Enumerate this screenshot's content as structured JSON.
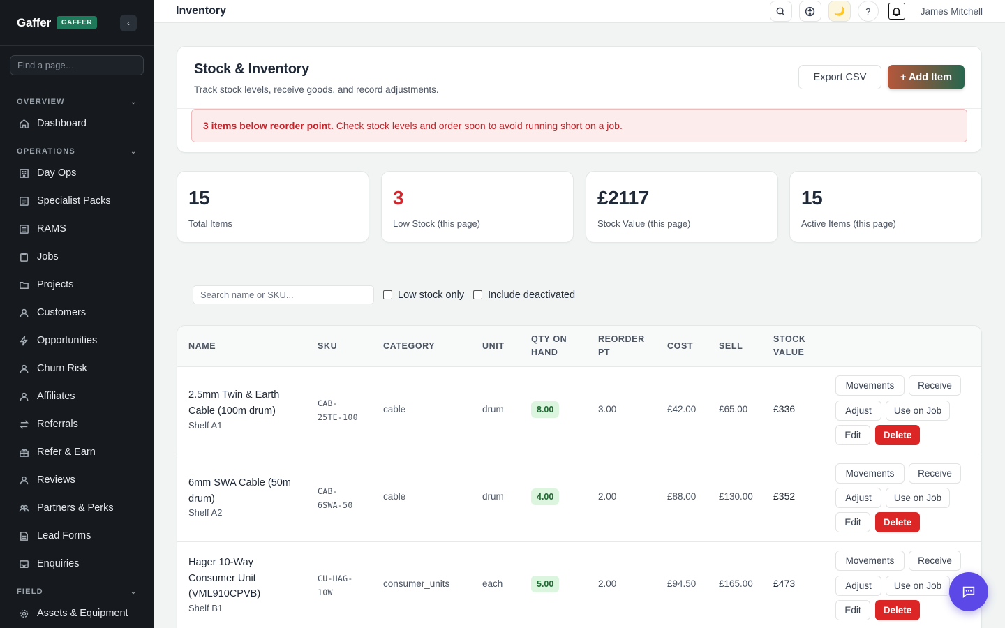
{
  "sidebar": {
    "logo": "Gaffer",
    "badge": "GAFFER",
    "collapse_glyph": "‹",
    "search_placeholder": "Find a page…",
    "sections": {
      "overview": "OVERVIEW",
      "operations": "OPERATIONS",
      "field": "FIELD"
    },
    "items": {
      "dashboard": "Dashboard",
      "day_ops": "Day Ops",
      "specialist_packs": "Specialist Packs",
      "rams": "RAMS",
      "jobs": "Jobs",
      "projects": "Projects",
      "customers": "Customers",
      "opportunities": "Opportunities",
      "churn_risk": "Churn Risk",
      "affiliates": "Affiliates",
      "referrals": "Referrals",
      "refer_earn": "Refer & Earn",
      "reviews": "Reviews",
      "partners_perks": "Partners & Perks",
      "lead_forms": "Lead Forms",
      "enquiries": "Enquiries",
      "assets_equipment": "Assets & Equipment"
    }
  },
  "topbar": {
    "title": "Inventory",
    "moon_glyph": "🌙",
    "help_glyph": "?",
    "user_name": "James Mitchell"
  },
  "header": {
    "title": "Stock & Inventory",
    "subtitle": "Track stock levels, receive goods, and record adjustments.",
    "export_label": "Export CSV",
    "add_label": "+ Add Item",
    "alert_bold": "3 items below reorder point.",
    "alert_text": "Check stock levels and order soon to avoid running short on a job."
  },
  "stats": [
    {
      "value": "15",
      "label": "Total Items"
    },
    {
      "value": "3",
      "label": "Low Stock (this page)"
    },
    {
      "value": "£2117",
      "label": "Stock Value (this page)"
    },
    {
      "value": "15",
      "label": "Active Items (this page)"
    }
  ],
  "filters": {
    "search_placeholder": "Search name or SKU...",
    "low_stock_label": "Low stock only",
    "include_deactivated_label": "Include deactivated"
  },
  "table": {
    "headers": {
      "name": "NAME",
      "sku": "SKU",
      "category": "CATEGORY",
      "unit": "UNIT",
      "qty_on_hand": [
        "QTY ON",
        "HAND"
      ],
      "reorder_pt": [
        "REORDER",
        "PT"
      ],
      "cost": "COST",
      "sell": "SELL",
      "stock_value": [
        "STOCK",
        "VALUE"
      ]
    },
    "actions": {
      "movements": "Movements",
      "receive": "Receive",
      "adjust": "Adjust",
      "use_on_job": "Use on Job",
      "edit": "Edit",
      "delete": "Delete"
    },
    "rows": [
      {
        "name_lines": [
          "2.5mm Twin & Earth",
          "Cable (100m drum)"
        ],
        "location": "Shelf A1",
        "sku_lines": [
          "CAB-",
          "25TE-100"
        ],
        "category": "cable",
        "unit": "drum",
        "qty": "8.00",
        "reorder": "3.00",
        "cost": "£42.00",
        "sell": "£65.00",
        "stock_value": "£336"
      },
      {
        "name_lines": [
          "6mm SWA Cable (50m",
          "drum)"
        ],
        "location": "Shelf A2",
        "sku_lines": [
          "CAB-",
          "6SWA-50"
        ],
        "category": "cable",
        "unit": "drum",
        "qty": "4.00",
        "reorder": "2.00",
        "cost": "£88.00",
        "sell": "£130.00",
        "stock_value": "£352"
      },
      {
        "name_lines": [
          "Hager 10-Way",
          "Consumer Unit",
          "(VML910CPVB)"
        ],
        "location": "Shelf B1",
        "sku_lines": [
          "CU-HAG-",
          "10W"
        ],
        "category": "consumer_units",
        "unit": "each",
        "qty": "5.00",
        "reorder": "2.00",
        "cost": "£94.50",
        "sell": "£165.00",
        "stock_value": "£473"
      }
    ]
  }
}
